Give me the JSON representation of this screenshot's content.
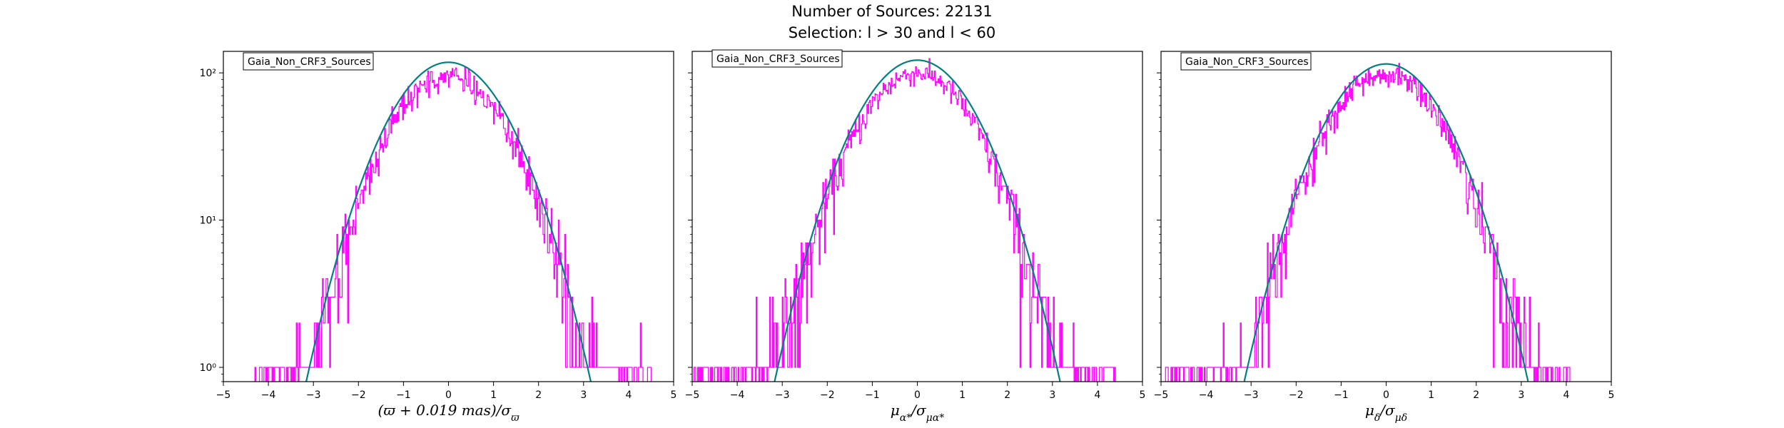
{
  "figure": {
    "title_line1": "Number of Sources: 22131",
    "title_line2": "Selection: l > 30 and l < 60"
  },
  "chart_data": [
    {
      "type": "histogram",
      "legend": "Gaia_Non_CRF3_Sources",
      "legend_position": "top-left",
      "xlabel": "(ϖ + 0.019 mas)/σ_ϖ",
      "xlim": [
        -5,
        5
      ],
      "xticks": [
        "−5",
        "−4",
        "−3",
        "−2",
        "−1",
        "0",
        "1",
        "2",
        "3",
        "4",
        "5"
      ],
      "ylim": [
        0.8,
        140
      ],
      "yscale": "log",
      "yticks": [
        "10^0",
        "10^1",
        "10^2"
      ],
      "grid": false,
      "hist_color": "#ff00ff",
      "curve_color": "#008080",
      "gaussian_peak": 118,
      "gaussian_mu": 0.0,
      "gaussian_sigma": 1.0,
      "hist_peak": 95,
      "hist_range": [
        -4.3,
        4.5
      ]
    },
    {
      "type": "histogram",
      "legend": "Gaia_Non_CRF3_Sources",
      "legend_position": "top-left",
      "xlabel": "μ_α*/σ_μα*",
      "xlim": [
        -5,
        5
      ],
      "xticks": [
        "−5",
        "−4",
        "−3",
        "−2",
        "−1",
        "0",
        "1",
        "2",
        "3",
        "4",
        "5"
      ],
      "ylim": [
        0.8,
        140
      ],
      "yscale": "log",
      "yticks": [],
      "grid": false,
      "hist_color": "#ff00ff",
      "curve_color": "#008080",
      "gaussian_peak": 122,
      "gaussian_mu": 0.0,
      "gaussian_sigma": 1.0,
      "hist_peak": 100,
      "hist_range": [
        -5.0,
        4.4
      ]
    },
    {
      "type": "histogram",
      "legend": "Gaia_Non_CRF3_Sources",
      "legend_position": "top-left",
      "xlabel": "μ_δ/σ_μδ",
      "xlim": [
        -5,
        5
      ],
      "xticks": [
        "−5",
        "−4",
        "−3",
        "−2",
        "−1",
        "0",
        "1",
        "2",
        "3",
        "4",
        "5"
      ],
      "ylim": [
        0.8,
        140
      ],
      "yscale": "log",
      "yticks": [],
      "grid": false,
      "hist_color": "#ff00ff",
      "curve_color": "#008080",
      "gaussian_peak": 115,
      "gaussian_mu": 0.0,
      "gaussian_sigma": 1.0,
      "hist_peak": 98,
      "hist_range": [
        -4.9,
        4.1
      ]
    }
  ]
}
